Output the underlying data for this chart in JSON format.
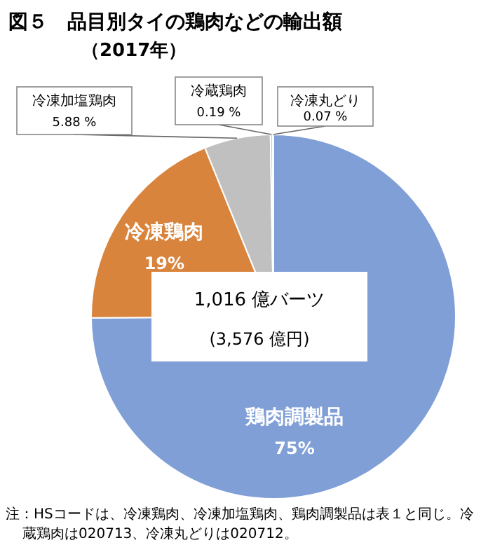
{
  "chart_data": {
    "type": "pie",
    "title": "図５　品目別タイの鶏肉などの輸出額",
    "subtitle": "（2017年）",
    "categories": [
      "鶏肉調製品",
      "冷凍鶏肉",
      "冷凍加塩鶏肉",
      "冷蔵鶏肉",
      "冷凍丸どり"
    ],
    "values": [
      75,
      19,
      5.88,
      0.19,
      0.07
    ],
    "colors": [
      "#7f9fd6",
      "#d9843c",
      "#c0c0c0",
      "#e8c23a",
      "#5b8fd0"
    ],
    "value_labels": [
      "75%",
      "19%",
      "5.88 %",
      "0.19 %",
      "0.07 %"
    ],
    "annotations": [
      "1,016 億バーツ",
      "(3,576 億円)",
      "注：HSコードは、冷凍鶏肉、冷凍加塩鶏肉、鶏肉調製品は表１と同じ。冷蔵鶏肉は020713、冷凍丸どりは020712。"
    ]
  }
}
